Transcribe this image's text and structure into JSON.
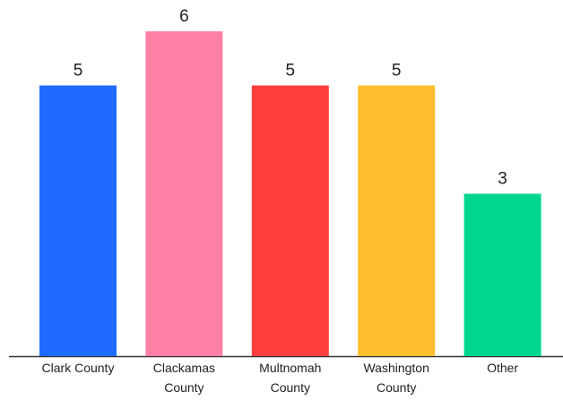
{
  "chart_data": {
    "type": "bar",
    "categories": [
      "Clark County",
      "Clackamas County",
      "Multnomah County",
      "Washington County",
      "Other"
    ],
    "values": [
      5,
      6,
      5,
      5,
      3
    ],
    "colors": [
      "#1f6bff",
      "#ff80a6",
      "#ff3d3d",
      "#ffbf2e",
      "#00d68f"
    ]
  }
}
